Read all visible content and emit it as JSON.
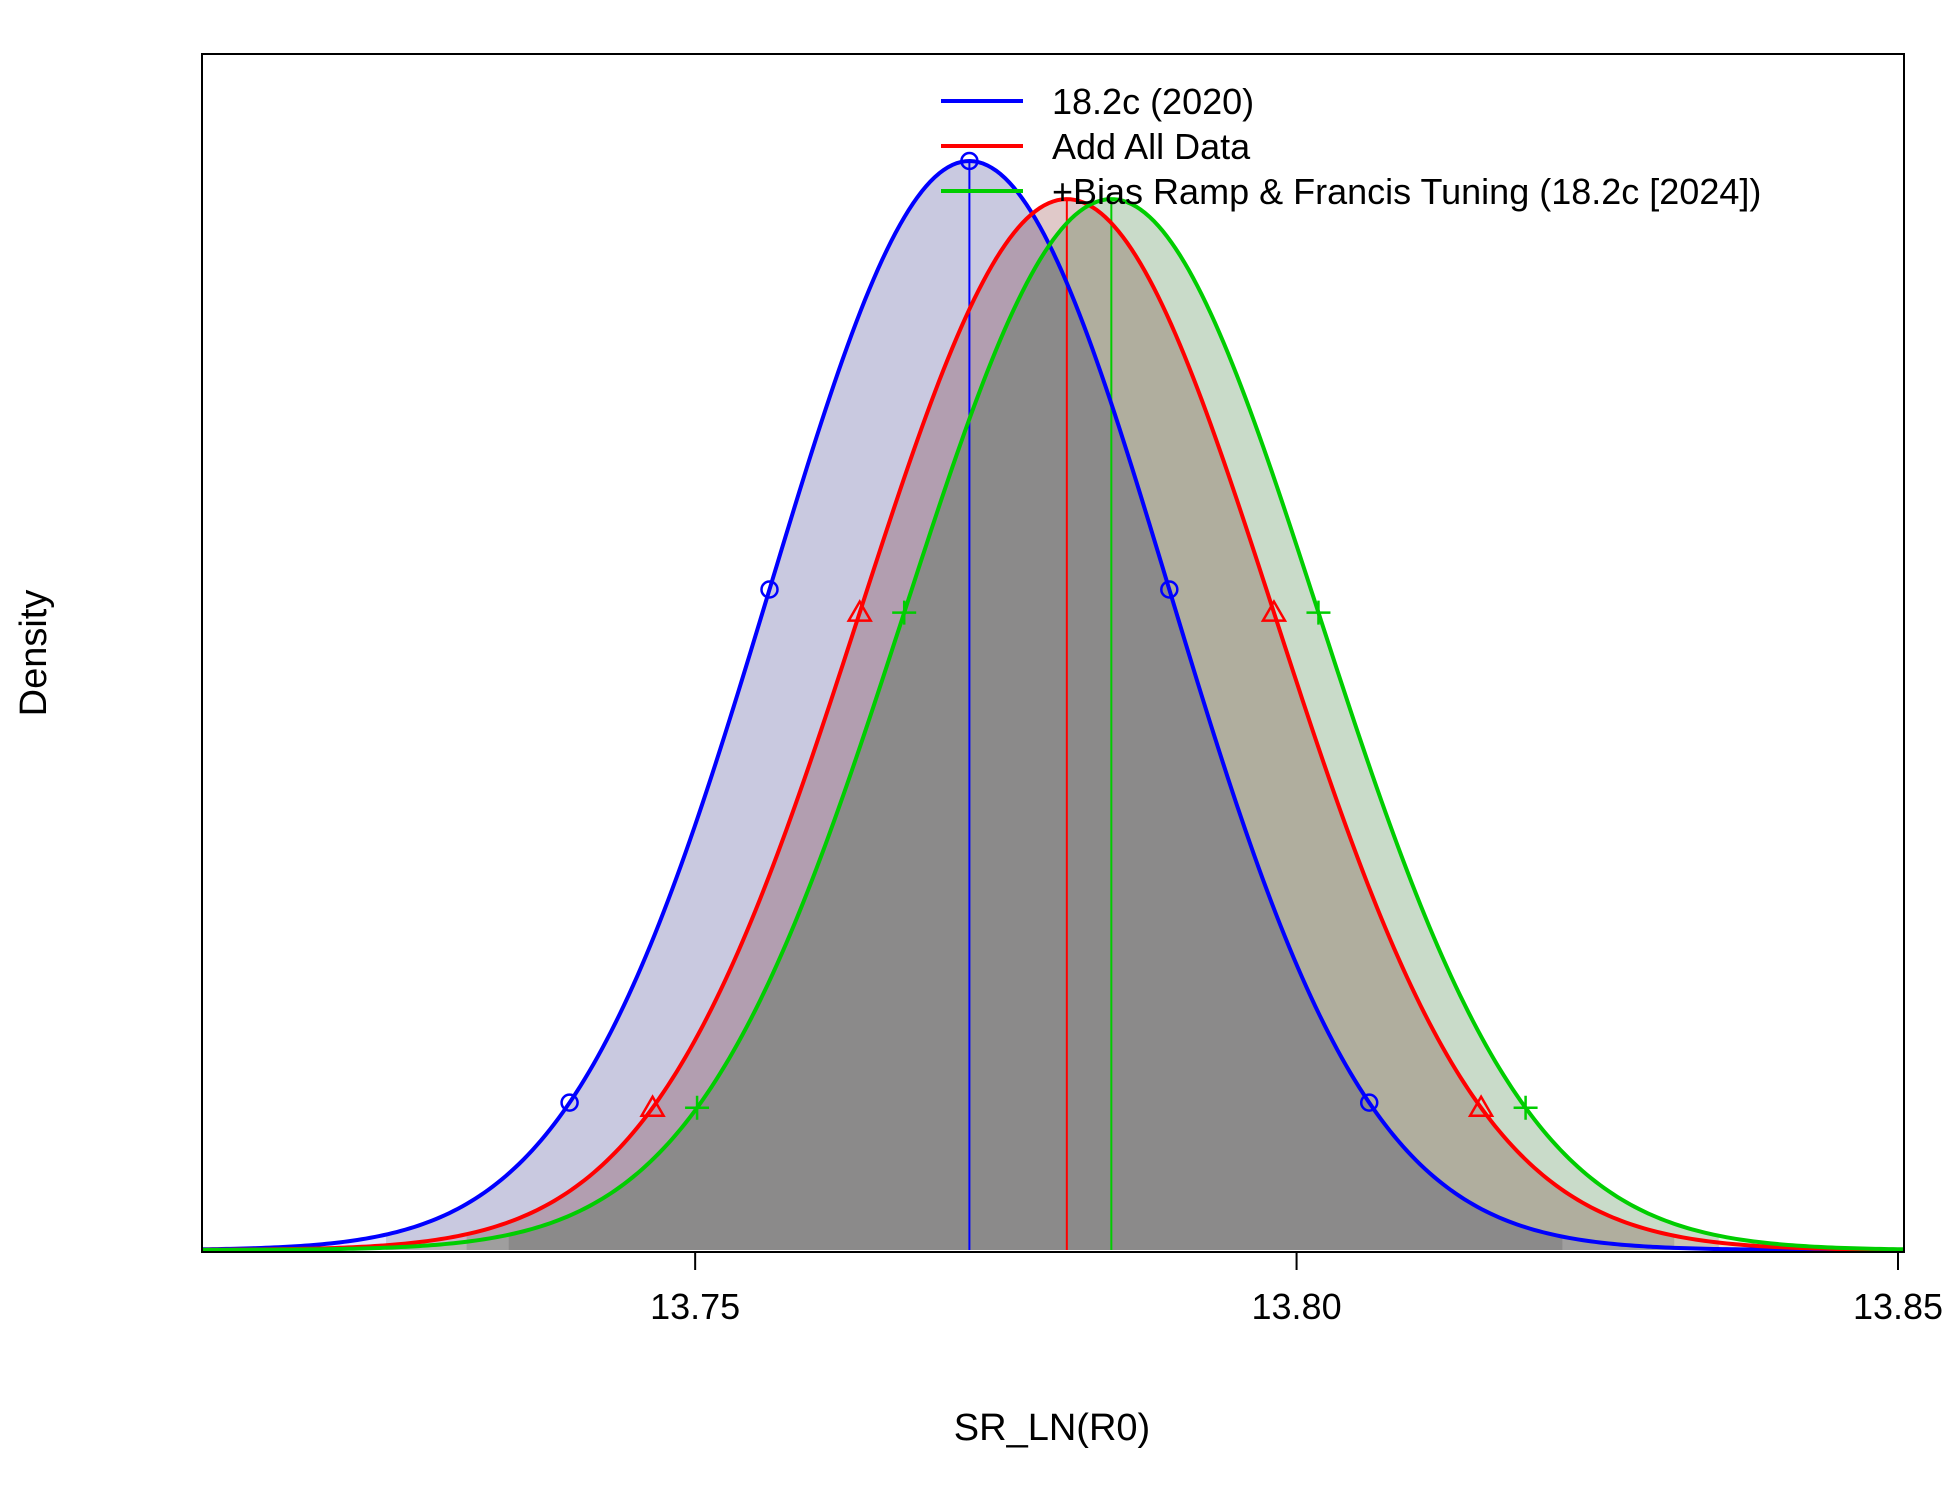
{
  "chart_data": {
    "type": "line",
    "title": "",
    "xlabel": "SR_LN(R0)",
    "ylabel": "Density",
    "xlim": [
      13.709,
      13.8505
    ],
    "x_ticks": [
      13.75,
      13.8,
      13.85
    ],
    "x_tick_labels": [
      "13.75",
      "13.80",
      "13.85"
    ],
    "y_ticks": [],
    "grid": false,
    "legend_position": "top-center",
    "series": [
      {
        "name": "18.2c (2020)",
        "color": "#0000FF",
        "fill": "rgba(0,0,255,0.10)",
        "marker": "circle",
        "mean": 13.7728,
        "sd": 0.01662,
        "peak_density": 1.0,
        "interval_95": [
          13.7243,
          13.8221
        ]
      },
      {
        "name": "Add All Data",
        "color": "#FF0000",
        "fill": "rgba(255,0,0,0.10)",
        "marker": "triangle",
        "mean": 13.7809,
        "sd": 0.01722,
        "peak_density": 0.965,
        "interval_95": [
          13.731,
          13.8314
        ]
      },
      {
        "name": "+Bias Ramp & Francis Tuning (18.2c [2024])",
        "color": "#00CD00",
        "fill": "rgba(0,205,0,0.10)",
        "marker": "plus",
        "mean": 13.7846,
        "sd": 0.01722,
        "peak_density": 0.965,
        "interval_95": [
          13.7345,
          13.8351
        ]
      }
    ]
  }
}
